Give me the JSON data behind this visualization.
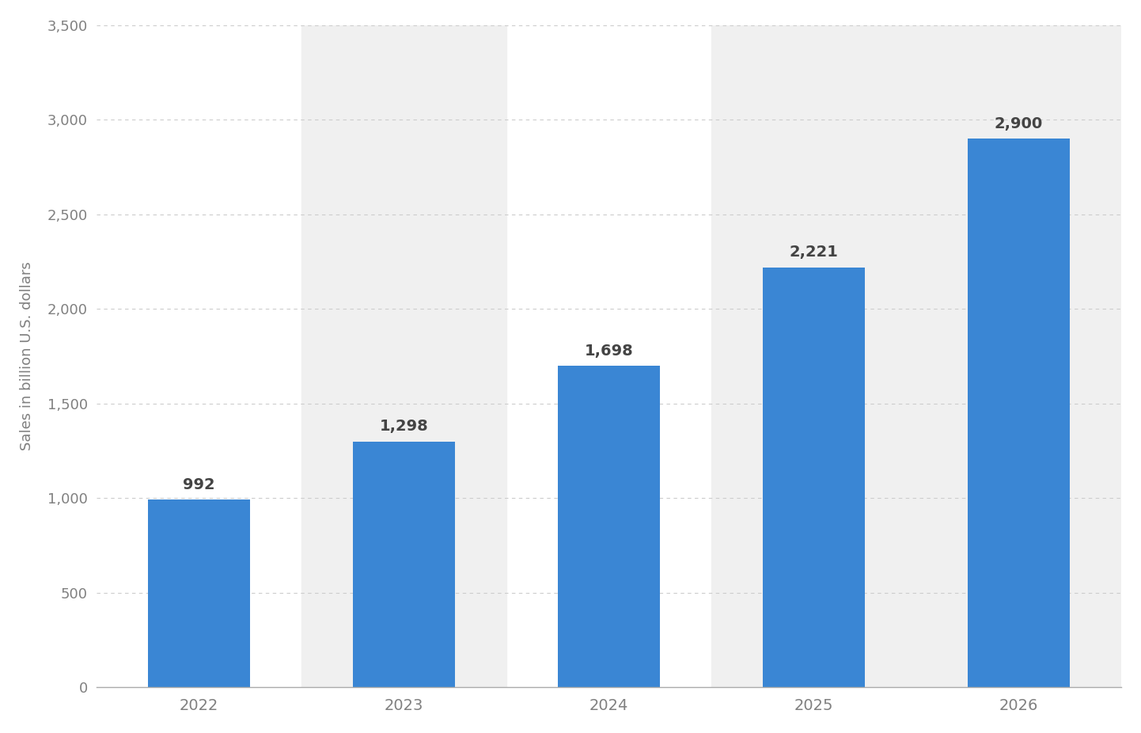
{
  "years": [
    "2022",
    "2023",
    "2024",
    "2025",
    "2026"
  ],
  "values": [
    992,
    1298,
    1698,
    2221,
    2900
  ],
  "bar_color": "#3a86d4",
  "ylabel": "Sales in billion U.S. dollars",
  "ylim": [
    0,
    3500
  ],
  "yticks": [
    0,
    500,
    1000,
    1500,
    2000,
    2500,
    3000,
    3500
  ],
  "ytick_labels": [
    "0",
    "500",
    "1,000",
    "1,500",
    "2,000",
    "2,500",
    "3,000",
    "3,500"
  ],
  "value_labels": [
    "992",
    "1,298",
    "1,698",
    "2,221",
    "2,900"
  ],
  "background_color": "#ffffff",
  "col_bg_gray": "#f0f0f0",
  "col_bg_white": "#ffffff",
  "col_bg_pattern": [
    0,
    1,
    0,
    1,
    1
  ],
  "grid_color": "#cccccc",
  "tick_label_color": "#808080",
  "value_label_color": "#444444",
  "bar_width": 0.5
}
